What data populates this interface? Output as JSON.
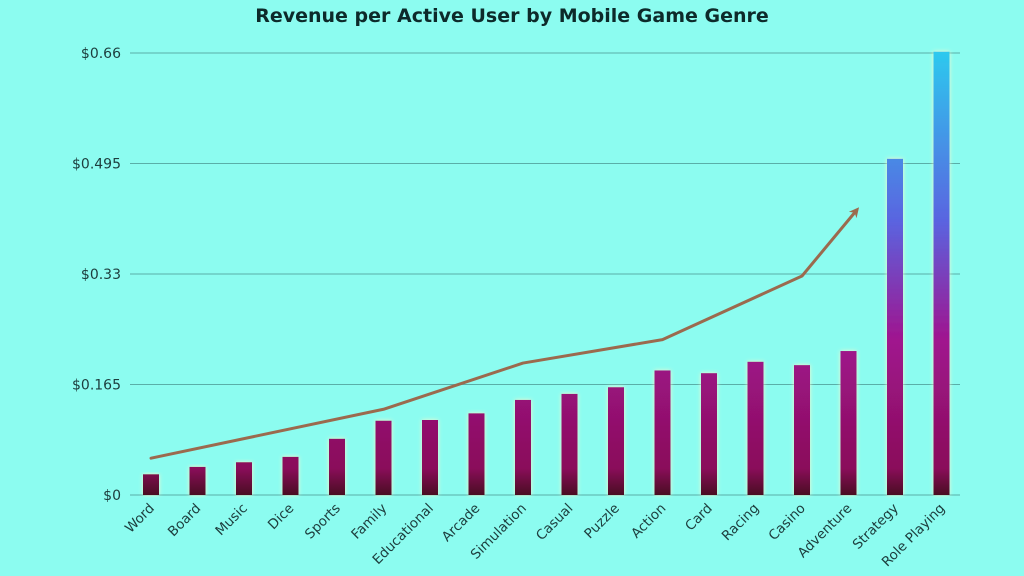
{
  "chart_data": {
    "type": "bar",
    "title": "Revenue per Active User by Mobile Game Genre",
    "xlabel": "",
    "ylabel": "",
    "ylim": [
      0,
      0.66
    ],
    "yticks": [
      {
        "value": 0,
        "label": "$0"
      },
      {
        "value": 0.165,
        "label": "$0.165"
      },
      {
        "value": 0.33,
        "label": "$0.33"
      },
      {
        "value": 0.495,
        "label": "$0.495"
      },
      {
        "value": 0.66,
        "label": "$0.66"
      }
    ],
    "grid": true,
    "categories": [
      "Word",
      "Board",
      "Music",
      "Dice",
      "Sports",
      "Family",
      "Educational",
      "Arcade",
      "Simulation",
      "Casual",
      "Puzzle",
      "Action",
      "Card",
      "Racing",
      "Casino",
      "Adventure",
      "Strategy",
      "Role Playing"
    ],
    "values": [
      0.031,
      0.042,
      0.049,
      0.057,
      0.084,
      0.111,
      0.112,
      0.122,
      0.142,
      0.151,
      0.161,
      0.186,
      0.182,
      0.199,
      0.194,
      0.215,
      0.502,
      0.662
    ],
    "trend_line": {
      "x": [
        "Word",
        "Family",
        "Simulation",
        "Action",
        "Casino",
        "Adventure"
      ],
      "values": [
        0.055,
        0.128,
        0.197,
        0.232,
        0.327,
        0.425
      ],
      "color": "#9b6a4e",
      "arrow": true
    },
    "colors": {
      "background": "#8cfcf0",
      "bar_top": "#2dc8ee",
      "bar_mid": "#5a64e0",
      "bar_high": "#a0148e",
      "bar_bottom": "#4a0822"
    }
  }
}
